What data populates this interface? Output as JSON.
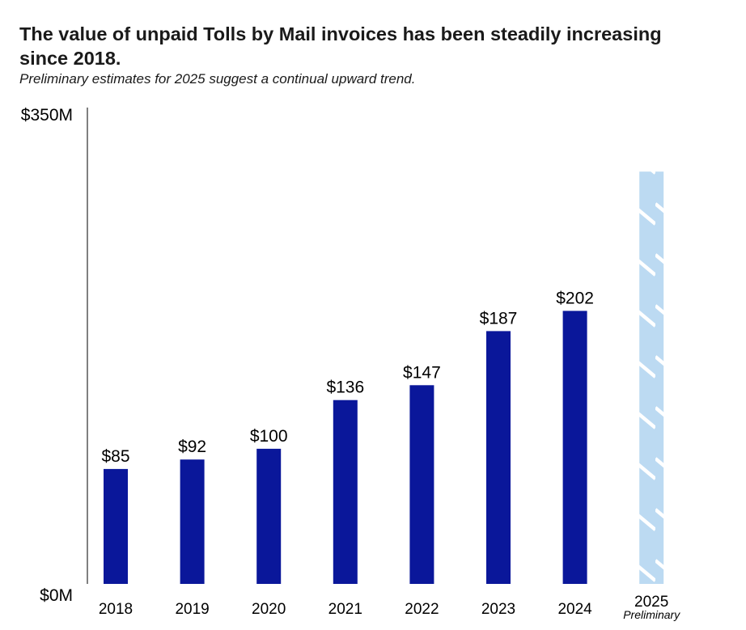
{
  "colors": {
    "bar": "#0a179a",
    "preliminary_bar": "#bcdaf2",
    "axis": "#000000"
  },
  "chart_data": {
    "type": "bar",
    "title": "The value of unpaid Tolls by Mail invoices has been steadily increasing since 2018.",
    "subtitle": "Preliminary estimates for 2025 suggest a continual upward trend.",
    "xlabel": "",
    "ylabel": "",
    "ylim": [
      0,
      350
    ],
    "yticks": [
      {
        "value": 0,
        "label": "$0M"
      },
      {
        "value": 350,
        "label": "$350M"
      }
    ],
    "categories": [
      "2018",
      "2019",
      "2020",
      "2021",
      "2022",
      "2023",
      "2024",
      "2025"
    ],
    "values": [
      85,
      92,
      100,
      136,
      147,
      187,
      202,
      305
    ],
    "labels": [
      "$85",
      "$92",
      "$100",
      "$136",
      "$147",
      "$187",
      "$202",
      ""
    ],
    "preliminary": [
      false,
      false,
      false,
      false,
      false,
      false,
      false,
      true
    ],
    "preliminary_note": "Preliminary",
    "grid": false,
    "legend": "none"
  }
}
